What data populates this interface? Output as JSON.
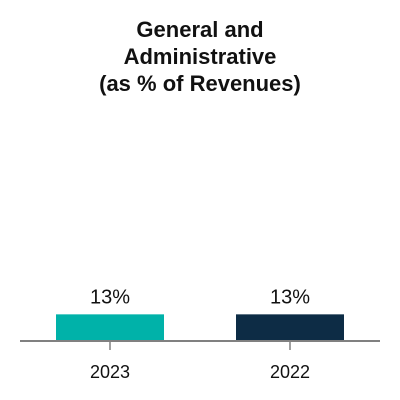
{
  "chart_data": {
    "type": "bar",
    "title_lines": [
      "General and",
      "Administrative",
      "(as % of Revenues)"
    ],
    "categories": [
      "2023",
      "2022"
    ],
    "values": [
      13,
      13
    ],
    "data_labels": [
      "13%",
      "13%"
    ],
    "bar_colors": [
      "#00b2a9",
      "#0d2c45"
    ],
    "axis_color": "#808080",
    "ylim": [
      0,
      100
    ],
    "grid": false,
    "legend": "none"
  }
}
